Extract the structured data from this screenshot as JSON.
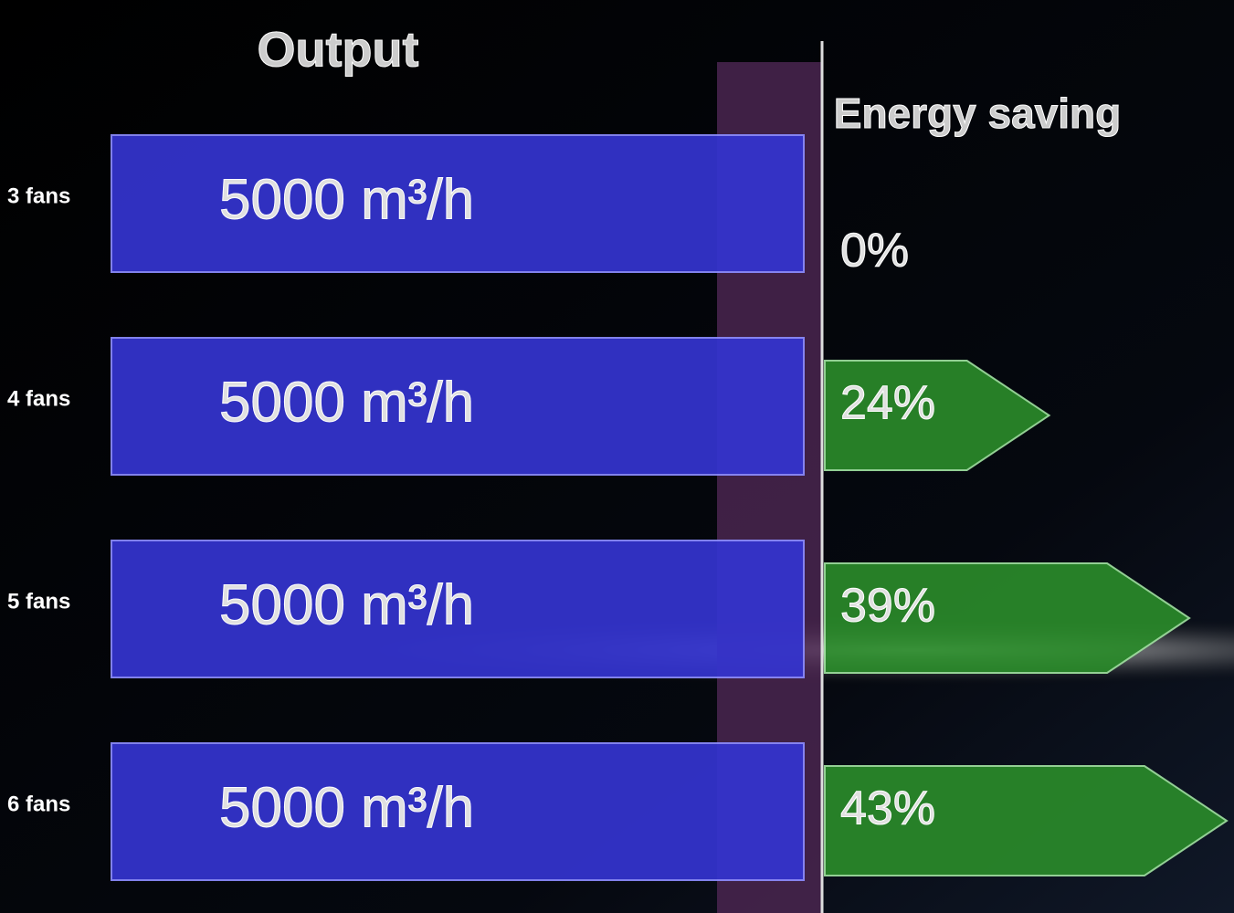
{
  "chart_data": {
    "type": "bar",
    "categories": [
      "3 fans",
      "4 fans",
      "5 fans",
      "6 fans"
    ],
    "series": [
      {
        "name": "Output",
        "color": "#3434d0",
        "values": [
          5000,
          5000,
          5000,
          5000
        ],
        "value_labels": [
          "5000 m³/h",
          "5000 m³/h",
          "5000 m³/h",
          "5000 m³/h"
        ]
      },
      {
        "name": "Energy saving",
        "color": "#2a8a2a",
        "values": [
          0,
          24,
          39,
          43
        ],
        "value_labels": [
          "0%",
          "24%",
          "39%",
          "43%"
        ]
      }
    ]
  }
}
